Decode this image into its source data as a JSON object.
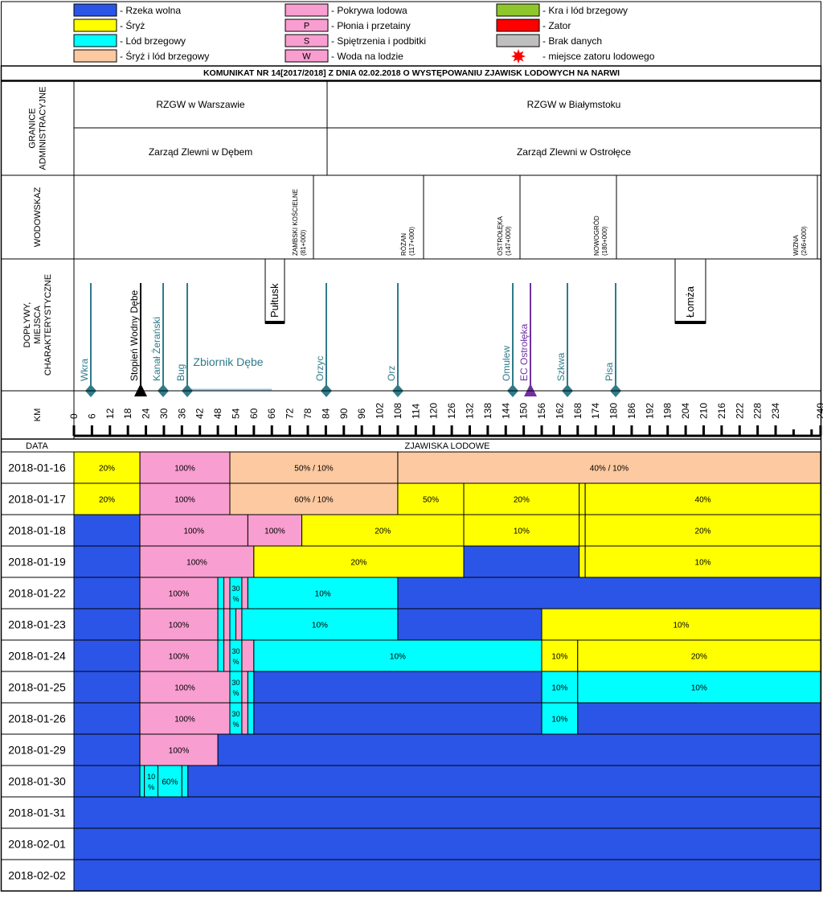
{
  "legend": [
    {
      "key": "wolna",
      "sym": "",
      "label": "- Rzeka wolna",
      "color": "#2b55e6"
    },
    {
      "key": "sryz",
      "sym": "",
      "label": "- Śryż",
      "color": "#ffff00"
    },
    {
      "key": "lodb",
      "sym": "",
      "label": "- Lód brzegowy",
      "color": "#00ffff"
    },
    {
      "key": "sryzlb",
      "sym": "",
      "label": "- Śryż i lód brzegowy",
      "color": "#fcc9a0"
    },
    {
      "key": "pokrywa",
      "sym": "",
      "label": "- Pokrywa lodowa",
      "color": "#f89ed0"
    },
    {
      "key": "plonia",
      "sym": "P",
      "label": "- Płonia i przetainy",
      "color": "#f89ed0"
    },
    {
      "key": "spietrz",
      "sym": "S",
      "label": "- Spiętrzenia i podbitki",
      "color": "#f89ed0"
    },
    {
      "key": "woda",
      "sym": "W",
      "label": "- Woda na lodzie",
      "color": "#f89ed0"
    },
    {
      "key": "kra",
      "sym": "",
      "label": "- Kra i lód brzegowy",
      "color": "#8fc62b"
    },
    {
      "key": "zator",
      "sym": "",
      "label": "- Zator",
      "color": "#ff0000"
    },
    {
      "key": "brak",
      "sym": "",
      "label": "- Brak danych",
      "color": "#bfbfbf"
    },
    {
      "key": "miejsce",
      "sym": "",
      "label": "- miejsce zatoru lodowego",
      "color": "#ff0000"
    }
  ],
  "title": "KOMUNIKAT NR 14[2017/2018] Z DNIA 02.02.2018 O WYSTĘPOWANIU ZJAWISK LODOWYCH NA NARWI",
  "row_labels": {
    "granice": "GRANICE ADMINISTRACYJNE",
    "wodowskaz": "WODOWSKAZ",
    "doplywy": "DOPŁYWY, MIEJSCA CHARAKTERYSTYCZNE",
    "km": "KM",
    "data": "DATA",
    "zjawiska": "ZJAWISKA LODOWE"
  },
  "admin": {
    "rzgw": [
      "RZGW w Warszawie",
      "RZGW w Białymstoku"
    ],
    "zarzad": [
      "Zarząd Zlewni w Dębem",
      "Zarząd Zlewni w Ostrołęce"
    ],
    "split_km": 72
  },
  "gauges": [
    {
      "name": "ZAMBSKI KOŚCIELNE",
      "km_label": "(81+000)",
      "km": 81
    },
    {
      "name": "RÓŻAN",
      "km_label": "(117+000)",
      "km": 117
    },
    {
      "name": "OSTROŁĘKA",
      "km_label": "(147+000)",
      "km": 147
    },
    {
      "name": "NOWOGRÓD",
      "km_label": "(180+000)",
      "km": 180
    },
    {
      "name": "WIZNA",
      "km_label": "(246+000)",
      "km": 246
    }
  ],
  "tributaries": [
    {
      "name": "Wkra",
      "km": 0.5,
      "color": "#2e7b8a",
      "marker": "diamond"
    },
    {
      "name": "Stopień Wodny Dębe",
      "km": 22,
      "color": "#000000",
      "marker": "triangle"
    },
    {
      "name": "Kanał Żerański",
      "km": 30,
      "color": "#2e7b8a",
      "marker": "diamond"
    },
    {
      "name": "Bug",
      "km": 38,
      "color": "#2e7b8a",
      "marker": "diamond"
    },
    {
      "name": "Orzyc",
      "km": 84,
      "color": "#2e7b8a",
      "marker": "diamond"
    },
    {
      "name": "Orz",
      "km": 108,
      "color": "#2e7b8a",
      "marker": "diamond"
    },
    {
      "name": "Omulew",
      "km": 146,
      "color": "#2e7b8a",
      "marker": "diamond"
    },
    {
      "name": "EC Ostrołęka",
      "km": 152,
      "color": "#7030a0",
      "marker": "triangle"
    },
    {
      "name": "Szkwa",
      "km": 164,
      "color": "#2e7b8a",
      "marker": "diamond"
    },
    {
      "name": "Pisa",
      "km": 180,
      "color": "#2e7b8a",
      "marker": "diamond"
    }
  ],
  "towns": [
    {
      "name": "Pułtusk",
      "km": 66
    },
    {
      "name": "Łomża",
      "km": 205
    }
  ],
  "reservoir": {
    "name": "Zbiornik Dębe",
    "from_km": 38,
    "to_km": 66
  },
  "axis": {
    "min": 0,
    "max": 249,
    "tick_step": 6,
    "labels": [
      0,
      6,
      12,
      18,
      24,
      30,
      36,
      42,
      48,
      54,
      60,
      66,
      72,
      78,
      84,
      90,
      96,
      102,
      108,
      114,
      120,
      126,
      132,
      138,
      144,
      150,
      156,
      162,
      168,
      174,
      180,
      186,
      192,
      198,
      204,
      210,
      216,
      222,
      228,
      234,
      249
    ]
  },
  "chart_data": {
    "type": "table",
    "title": "KOMUNIKAT NR 14[2017/2018] Z DNIA 02.02.2018 O WYSTĘPOWANIU ZJAWISK LODOWYCH NA NARWI",
    "xlabel": "KM",
    "xlim": [
      0,
      249
    ],
    "rows": [
      {
        "date": "2018-01-16",
        "segments": [
          {
            "from": 0,
            "to": 22,
            "type": "sryz",
            "label": "20%"
          },
          {
            "from": 22,
            "to": 52,
            "type": "pokrywa",
            "label": "100%"
          },
          {
            "from": 52,
            "to": 108,
            "type": "sryzlb",
            "label": "50% / 10%"
          },
          {
            "from": 108,
            "to": 249,
            "type": "sryzlb",
            "label": "40% / 10%"
          }
        ]
      },
      {
        "date": "2018-01-17",
        "segments": [
          {
            "from": 0,
            "to": 22,
            "type": "sryz",
            "label": "20%"
          },
          {
            "from": 22,
            "to": 52,
            "type": "pokrywa",
            "label": "100%"
          },
          {
            "from": 52,
            "to": 108,
            "type": "sryzlb",
            "label": "60% / 10%"
          },
          {
            "from": 108,
            "to": 130,
            "type": "sryz",
            "label": "50%"
          },
          {
            "from": 130,
            "to": 168.5,
            "type": "sryz",
            "label": "20%"
          },
          {
            "from": 168.5,
            "to": 170.5,
            "type": "sryz",
            "label": ""
          },
          {
            "from": 170.5,
            "to": 249,
            "type": "sryz",
            "label": "40%"
          }
        ]
      },
      {
        "date": "2018-01-18",
        "segments": [
          {
            "from": 0,
            "to": 22,
            "type": "wolna",
            "label": ""
          },
          {
            "from": 22,
            "to": 58,
            "type": "pokrywa",
            "label": "100%"
          },
          {
            "from": 58,
            "to": 76,
            "type": "pokrywa",
            "label": "100%"
          },
          {
            "from": 76,
            "to": 130,
            "type": "sryz",
            "label": "20%"
          },
          {
            "from": 130,
            "to": 168.5,
            "type": "sryz",
            "label": "10%"
          },
          {
            "from": 168.5,
            "to": 170.5,
            "type": "sryz",
            "label": ""
          },
          {
            "from": 170.5,
            "to": 249,
            "type": "sryz",
            "label": "20%"
          }
        ]
      },
      {
        "date": "2018-01-19",
        "segments": [
          {
            "from": 0,
            "to": 22,
            "type": "wolna",
            "label": ""
          },
          {
            "from": 22,
            "to": 60,
            "type": "pokrywa",
            "label": "100%"
          },
          {
            "from": 60,
            "to": 130,
            "type": "sryz",
            "label": "20%"
          },
          {
            "from": 130,
            "to": 168.5,
            "type": "wolna",
            "label": ""
          },
          {
            "from": 168.5,
            "to": 170.5,
            "type": "sryz",
            "label": ""
          },
          {
            "from": 170.5,
            "to": 249,
            "type": "sryz",
            "label": "10%"
          }
        ]
      },
      {
        "date": "2018-01-22",
        "segments": [
          {
            "from": 0,
            "to": 22,
            "type": "wolna",
            "label": ""
          },
          {
            "from": 22,
            "to": 48,
            "type": "pokrywa",
            "label": "100%"
          },
          {
            "from": 48,
            "to": 50,
            "type": "lodb",
            "label": ""
          },
          {
            "from": 50,
            "to": 52,
            "type": "pokrywa",
            "label": ""
          },
          {
            "from": 52,
            "to": 56,
            "type": "lodb",
            "label": "30 %"
          },
          {
            "from": 56,
            "to": 58,
            "type": "pokrywa",
            "label": ""
          },
          {
            "from": 58,
            "to": 108,
            "type": "lodb",
            "label": "10%"
          },
          {
            "from": 108,
            "to": 249,
            "type": "wolna",
            "label": ""
          }
        ]
      },
      {
        "date": "2018-01-23",
        "segments": [
          {
            "from": 0,
            "to": 22,
            "type": "wolna",
            "label": ""
          },
          {
            "from": 22,
            "to": 48,
            "type": "pokrywa",
            "label": "100%"
          },
          {
            "from": 48,
            "to": 50,
            "type": "lodb",
            "label": ""
          },
          {
            "from": 50,
            "to": 52,
            "type": "pokrywa",
            "label": ""
          },
          {
            "from": 52,
            "to": 54,
            "type": "lodb",
            "label": ""
          },
          {
            "from": 54,
            "to": 56,
            "type": "pokrywa",
            "label": ""
          },
          {
            "from": 56,
            "to": 108,
            "type": "lodb",
            "label": "10%"
          },
          {
            "from": 108,
            "to": 156,
            "type": "wolna",
            "label": ""
          },
          {
            "from": 156,
            "to": 249,
            "type": "sryz",
            "label": "10%"
          }
        ]
      },
      {
        "date": "2018-01-24",
        "segments": [
          {
            "from": 0,
            "to": 22,
            "type": "wolna",
            "label": ""
          },
          {
            "from": 22,
            "to": 48,
            "type": "pokrywa",
            "label": "100%"
          },
          {
            "from": 48,
            "to": 50,
            "type": "lodb",
            "label": ""
          },
          {
            "from": 50,
            "to": 52,
            "type": "pokrywa",
            "label": ""
          },
          {
            "from": 52,
            "to": 56,
            "type": "lodb",
            "label": "30 %"
          },
          {
            "from": 56,
            "to": 60,
            "type": "pokrywa",
            "label": ""
          },
          {
            "from": 60,
            "to": 156,
            "type": "lodb",
            "label": "10%"
          },
          {
            "from": 156,
            "to": 168,
            "type": "sryz",
            "label": "10%"
          },
          {
            "from": 168,
            "to": 249,
            "type": "sryz",
            "label": "20%"
          }
        ]
      },
      {
        "date": "2018-01-25",
        "segments": [
          {
            "from": 0,
            "to": 22,
            "type": "wolna",
            "label": ""
          },
          {
            "from": 22,
            "to": 52,
            "type": "pokrywa",
            "label": "100%"
          },
          {
            "from": 52,
            "to": 56,
            "type": "lodb",
            "label": "30 %"
          },
          {
            "from": 56,
            "to": 58,
            "type": "pokrywa",
            "label": ""
          },
          {
            "from": 58,
            "to": 60,
            "type": "lodb",
            "label": ""
          },
          {
            "from": 60,
            "to": 156,
            "type": "wolna",
            "label": ""
          },
          {
            "from": 156,
            "to": 168,
            "type": "lodb",
            "label": "10%"
          },
          {
            "from": 168,
            "to": 249,
            "type": "lodb",
            "label": "10%"
          }
        ]
      },
      {
        "date": "2018-01-26",
        "segments": [
          {
            "from": 0,
            "to": 22,
            "type": "wolna",
            "label": ""
          },
          {
            "from": 22,
            "to": 52,
            "type": "pokrywa",
            "label": "100%"
          },
          {
            "from": 52,
            "to": 56,
            "type": "lodb",
            "label": "30 %"
          },
          {
            "from": 56,
            "to": 58,
            "type": "pokrywa",
            "label": ""
          },
          {
            "from": 58,
            "to": 60,
            "type": "lodb",
            "label": ""
          },
          {
            "from": 60,
            "to": 156,
            "type": "wolna",
            "label": ""
          },
          {
            "from": 156,
            "to": 168,
            "type": "lodb",
            "label": "10%"
          },
          {
            "from": 168,
            "to": 249,
            "type": "wolna",
            "label": ""
          }
        ]
      },
      {
        "date": "2018-01-29",
        "segments": [
          {
            "from": 0,
            "to": 22,
            "type": "wolna",
            "label": ""
          },
          {
            "from": 22,
            "to": 48,
            "type": "pokrywa",
            "label": "100%"
          },
          {
            "from": 48,
            "to": 249,
            "type": "wolna",
            "label": ""
          }
        ]
      },
      {
        "date": "2018-01-30",
        "segments": [
          {
            "from": 0,
            "to": 22,
            "type": "wolna",
            "label": ""
          },
          {
            "from": 22,
            "to": 23.5,
            "type": "lodb",
            "label": ""
          },
          {
            "from": 23.5,
            "to": 28,
            "type": "lodb",
            "label": "10 %"
          },
          {
            "from": 28,
            "to": 36,
            "type": "lodb",
            "label": "60%"
          },
          {
            "from": 36,
            "to": 38,
            "type": "lodb",
            "label": ""
          },
          {
            "from": 38,
            "to": 249,
            "type": "wolna",
            "label": ""
          }
        ]
      },
      {
        "date": "2018-01-31",
        "segments": [
          {
            "from": 0,
            "to": 249,
            "type": "wolna",
            "label": ""
          }
        ]
      },
      {
        "date": "2018-02-01",
        "segments": [
          {
            "from": 0,
            "to": 249,
            "type": "wolna",
            "label": ""
          }
        ]
      },
      {
        "date": "2018-02-02",
        "segments": [
          {
            "from": 0,
            "to": 249,
            "type": "wolna",
            "label": ""
          }
        ]
      }
    ]
  }
}
